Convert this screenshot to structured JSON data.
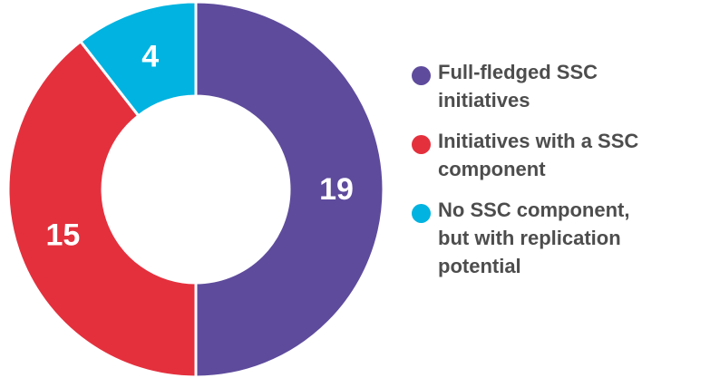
{
  "colors": {
    "full_fledged": "#5e4b9c",
    "ssc_component": "#e4303d",
    "replication": "#00b3e0",
    "background": "#ffffff",
    "label_text": "#ffffff",
    "legend_text": "#4d4d4d"
  },
  "chart_data": {
    "type": "pie",
    "donut": true,
    "title": "",
    "categories": [
      "Full-fledged SSC initiatives",
      "Initiatives with a SSC component",
      "No SSC component, but with replication potential"
    ],
    "values": [
      19,
      15,
      4
    ],
    "value_labels": [
      "19",
      "15",
      "4"
    ],
    "legend_position": "right",
    "legend": [
      {
        "lines": [
          "Full-fledged SSC",
          "initiatives"
        ],
        "color": "#5e4b9c",
        "icon": "circle-swatch"
      },
      {
        "lines": [
          "Initiatives with a SSC",
          "component"
        ],
        "color": "#e4303d",
        "icon": "circle-swatch"
      },
      {
        "lines": [
          "No SSC component,",
          "but with replication",
          "potential"
        ],
        "color": "#00b3e0",
        "icon": "circle-swatch"
      }
    ]
  }
}
